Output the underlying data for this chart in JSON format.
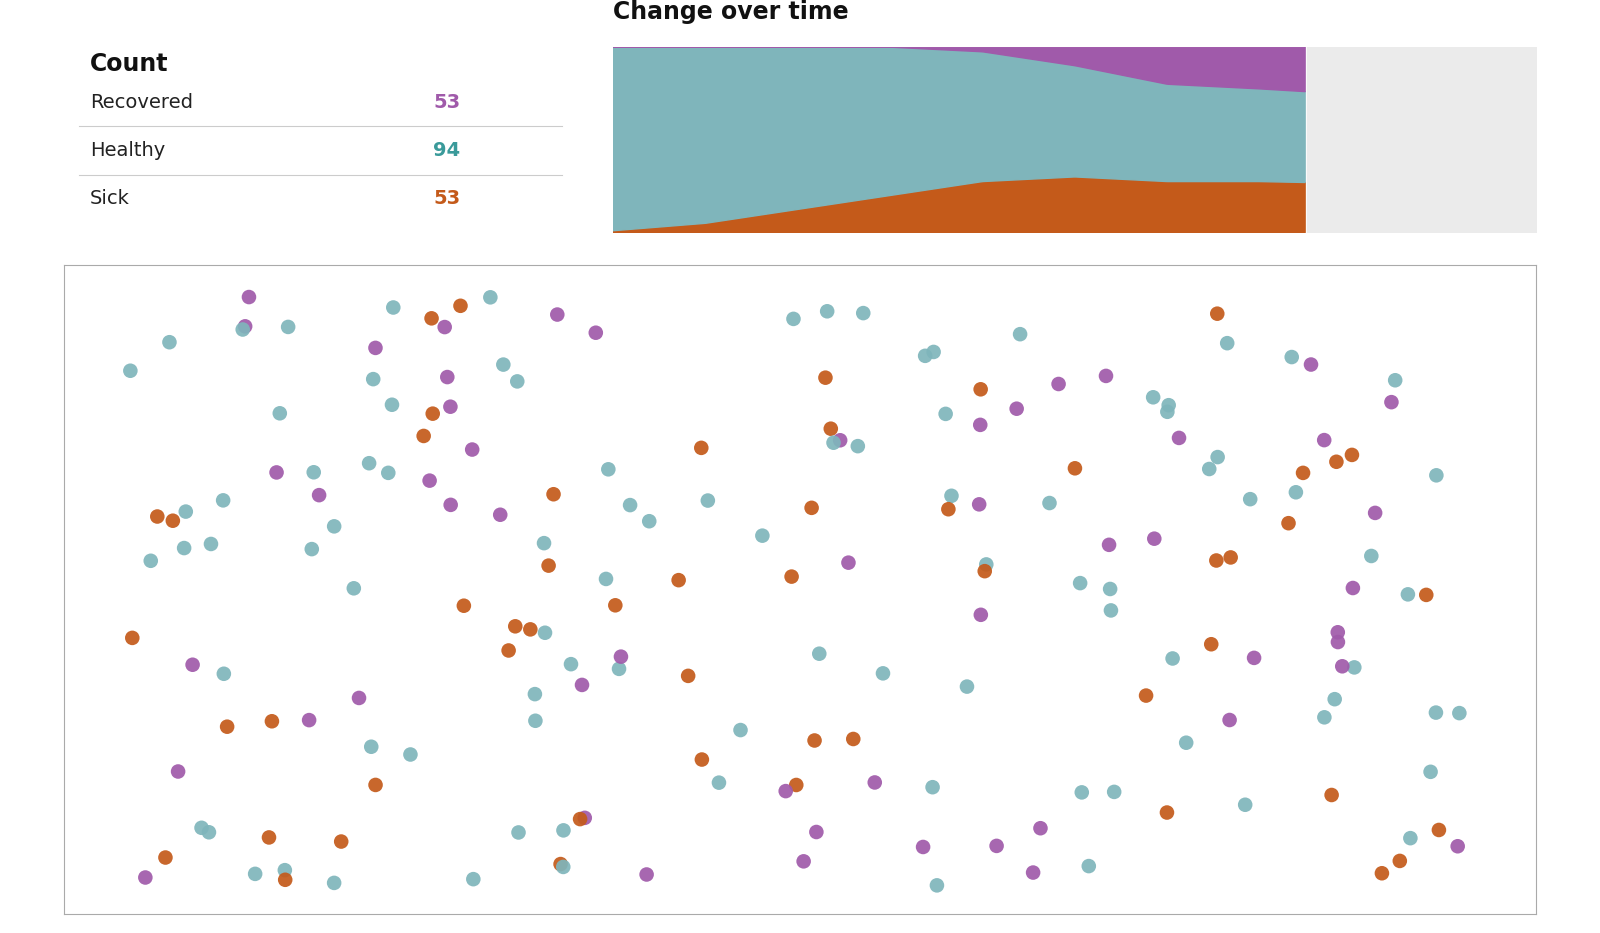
{
  "title_count": "Count",
  "title_chart": "Change over time",
  "labels": [
    "Recovered",
    "Healthy",
    "Sick"
  ],
  "counts": [
    53,
    94,
    53
  ],
  "colors": {
    "recovered": "#a05aaa",
    "healthy": "#7fb5bb",
    "sick": "#c45a1a"
  },
  "label_colors": {
    "recovered": "#a05aaa",
    "healthy": "#3a9a9a",
    "sick": "#c45a1a"
  },
  "bg_color": "#ffffff",
  "chart_area_bg": "#ebebeb",
  "dot_size": 110,
  "scatter_seed": 42,
  "n_healthy": 94,
  "n_sick": 53,
  "n_recovered": 53,
  "area_chart": {
    "x": [
      0,
      10,
      20,
      30,
      40,
      50,
      60,
      70,
      80,
      90,
      100
    ],
    "healthy": [
      198,
      190,
      175,
      160,
      140,
      120,
      105,
      100,
      96,
      95,
      94
    ],
    "sick": [
      2,
      10,
      25,
      40,
      55,
      60,
      55,
      55,
      53,
      53,
      53
    ],
    "recovered": [
      0,
      0,
      0,
      0,
      5,
      20,
      40,
      45,
      51,
      52,
      53
    ]
  },
  "area_chart_cutoff": 75,
  "total_pop": 200
}
